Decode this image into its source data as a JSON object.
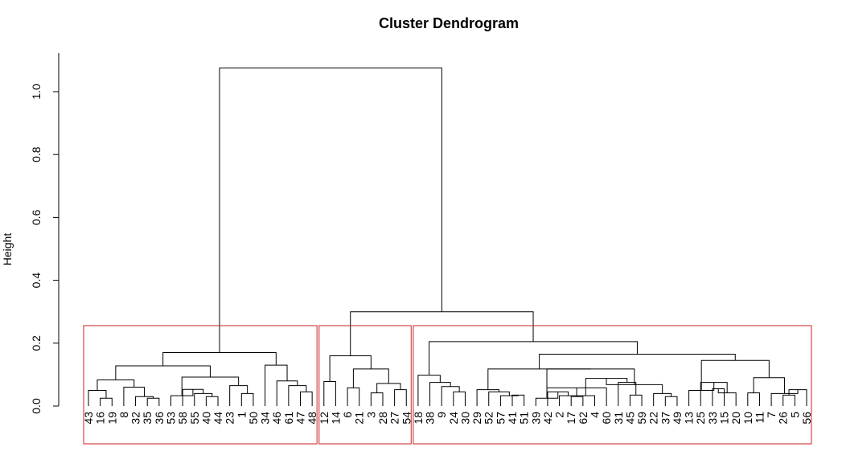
{
  "chart_data": {
    "type": "dendrogram",
    "title": "Cluster Dendrogram",
    "ylabel": "Height",
    "ylim": [
      0,
      1.1
    ],
    "yticks": [
      0.0,
      0.2,
      0.4,
      0.6,
      0.8,
      1.0
    ],
    "ytick_labels": [
      "0.0",
      "0.2",
      "0.4",
      "0.6",
      "0.8",
      "1.0"
    ],
    "leaves": [
      "43",
      "16",
      "19",
      "8",
      "32",
      "35",
      "36",
      "53",
      "58",
      "55",
      "40",
      "44",
      "23",
      "1",
      "50",
      "34",
      "46",
      "61",
      "47",
      "48",
      "12",
      "14",
      "6",
      "21",
      "3",
      "28",
      "27",
      "54",
      "18",
      "38",
      "9",
      "24",
      "30",
      "29",
      "52",
      "57",
      "41",
      "51",
      "39",
      "42",
      "2",
      "17",
      "62",
      "4",
      "60",
      "31",
      "45",
      "59",
      "22",
      "37",
      "49",
      "13",
      "25",
      "33",
      "15",
      "20",
      "10",
      "11",
      "7",
      "26",
      "5",
      "56"
    ],
    "merges": [
      {
        "a": "16",
        "b": "19",
        "h": 0.025
      },
      {
        "a": "43",
        "b": "m1",
        "h": 0.05
      },
      {
        "a": "35",
        "b": "36",
        "h": 0.025
      },
      {
        "a": "32",
        "b": "m3",
        "h": 0.03
      },
      {
        "a": "8",
        "b": "m4",
        "h": 0.06
      },
      {
        "a": "m2",
        "b": "m5",
        "h": 0.083
      },
      {
        "a": "40",
        "b": "44",
        "h": 0.03
      },
      {
        "a": "55",
        "b": "m7",
        "h": 0.04
      },
      {
        "a": "58",
        "b": "m8",
        "h": 0.053
      },
      {
        "a": "53",
        "b": "m9",
        "h": 0.033
      },
      {
        "a": "1",
        "b": "50",
        "h": 0.04
      },
      {
        "a": "23",
        "b": "m11",
        "h": 0.065
      },
      {
        "a": "m10",
        "b": "m12",
        "h": 0.092
      },
      {
        "a": "m6",
        "b": "m13",
        "h": 0.128
      },
      {
        "a": "47",
        "b": "48",
        "h": 0.045
      },
      {
        "a": "61",
        "b": "m15",
        "h": 0.065
      },
      {
        "a": "46",
        "b": "m16",
        "h": 0.08
      },
      {
        "a": "34",
        "b": "m17",
        "h": 0.13
      },
      {
        "a": "m14",
        "b": "m18",
        "h": 0.17
      },
      {
        "a": "12",
        "b": "14",
        "h": 0.078
      },
      {
        "a": "6",
        "b": "21",
        "h": 0.058
      },
      {
        "a": "3",
        "b": "28",
        "h": 0.042
      },
      {
        "a": "27",
        "b": "54",
        "h": 0.052
      },
      {
        "a": "m22",
        "b": "m23",
        "h": 0.072
      },
      {
        "a": "m21",
        "b": "m24",
        "h": 0.118
      },
      {
        "a": "m20",
        "b": "m25",
        "h": 0.16
      },
      {
        "a": "24",
        "b": "30",
        "h": 0.045
      },
      {
        "a": "9",
        "b": "m27",
        "h": 0.062
      },
      {
        "a": "38",
        "b": "m28",
        "h": 0.075
      },
      {
        "a": "18",
        "b": "m29",
        "h": 0.098
      },
      {
        "a": "41",
        "b": "51",
        "h": 0.035
      },
      {
        "a": "57",
        "b": "m31",
        "h": 0.033
      },
      {
        "a": "52",
        "b": "m32",
        "h": 0.045
      },
      {
        "a": "29",
        "b": "m33",
        "h": 0.052
      },
      {
        "a": "17",
        "b": "62",
        "h": 0.03
      },
      {
        "a": "2",
        "b": "m35",
        "h": 0.033
      },
      {
        "a": "42",
        "b": "m36",
        "h": 0.045
      },
      {
        "a": "39",
        "b": "m37",
        "h": 0.025
      },
      {
        "a": "60",
        "b": "m37b",
        "h": 0.058
      },
      {
        "a": "4",
        "b": "m39",
        "h": 0.033
      },
      {
        "a": "45",
        "b": "59",
        "h": 0.035
      },
      {
        "a": "31",
        "b": "m41",
        "h": 0.075
      },
      {
        "a": "m40",
        "b": "m42",
        "h": 0.088
      },
      {
        "a": "37",
        "b": "49",
        "h": 0.03
      },
      {
        "a": "22",
        "b": "m44",
        "h": 0.04
      },
      {
        "a": "m43",
        "b": "m45",
        "h": 0.068
      },
      {
        "a": "m38",
        "b": "m46",
        "h": 0.118
      },
      {
        "a": "m34",
        "b": "m47",
        "h": 0.118
      },
      {
        "a": "33",
        "b": "15",
        "h": 0.055
      },
      {
        "a": "m49",
        "b": "20",
        "h": 0.042
      },
      {
        "a": "25",
        "b": "m50",
        "h": 0.075
      },
      {
        "a": "13",
        "b": "m51",
        "h": 0.05
      },
      {
        "a": "10",
        "b": "11",
        "h": 0.042
      },
      {
        "a": "26",
        "b": "5",
        "h": 0.035
      },
      {
        "a": "m54",
        "b": "56",
        "h": 0.052
      },
      {
        "a": "7",
        "b": "m55",
        "h": 0.04
      },
      {
        "a": "m53",
        "b": "m56",
        "h": 0.09
      },
      {
        "a": "m52",
        "b": "m57",
        "h": 0.145
      },
      {
        "a": "m48",
        "b": "m58",
        "h": 0.165
      },
      {
        "a": "m30",
        "b": "m59",
        "h": 0.205
      },
      {
        "a": "m26",
        "b": "m60",
        "h": 0.3
      },
      {
        "a": "m19",
        "b": "m61",
        "h": 1.075
      }
    ],
    "cluster_boxes": [
      {
        "first": "43",
        "last": "48",
        "color": "#cc2222"
      },
      {
        "first": "12",
        "last": "54",
        "color": "#cc2222"
      },
      {
        "first": "18",
        "last": "56",
        "color": "#cc2222"
      }
    ]
  }
}
